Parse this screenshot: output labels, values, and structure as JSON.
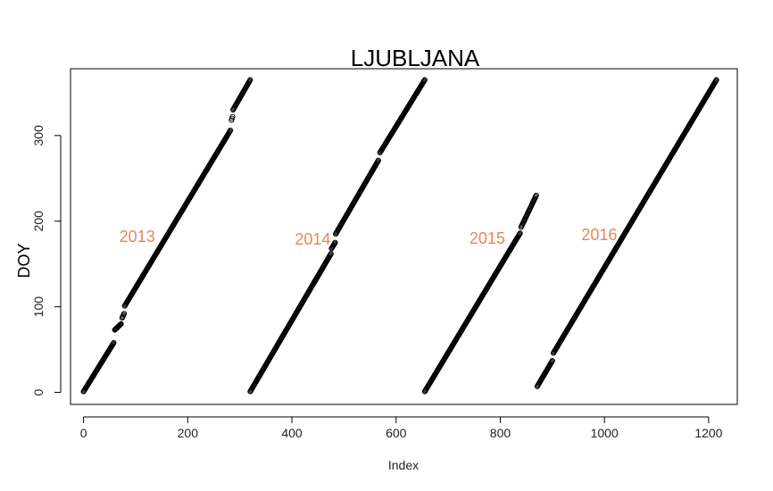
{
  "chart_data": {
    "type": "scatter",
    "title": "LJUBLJANA",
    "xlabel": "Index",
    "ylabel": "DOY",
    "xlim": [
      -25,
      1255
    ],
    "ylim": [
      -14,
      378
    ],
    "x_ticks": [
      0,
      200,
      400,
      600,
      800,
      1000,
      1200
    ],
    "y_ticks": [
      0,
      100,
      200,
      300
    ],
    "grid": false,
    "legend": "none",
    "marker": "open-circle",
    "marker_color": "#000000",
    "annotation_color": "#e8845a",
    "annotations": [
      {
        "text": "2013",
        "x": 103,
        "y": 182
      },
      {
        "text": "2014",
        "x": 440,
        "y": 179
      },
      {
        "text": "2015",
        "x": 775,
        "y": 180
      },
      {
        "text": "2016",
        "x": 990,
        "y": 184
      }
    ],
    "series": [
      {
        "segments": [
          {
            "x0": 0,
            "y0": 1,
            "x1": 58,
            "y1": 58
          },
          {
            "x0": 60,
            "y0": 73,
            "x1": 72,
            "y1": 80
          },
          {
            "x0": 74,
            "y0": 87,
            "x1": 78,
            "y1": 92
          },
          {
            "x0": 79,
            "y0": 101,
            "x1": 282,
            "y1": 306
          },
          {
            "x0": 284,
            "y0": 318,
            "x1": 286,
            "y1": 322
          },
          {
            "x0": 287,
            "y0": 330,
            "x1": 320,
            "y1": 365
          }
        ]
      },
      {
        "segments": [
          {
            "x0": 320,
            "y0": 1,
            "x1": 475,
            "y1": 162
          },
          {
            "x0": 476,
            "y0": 168,
            "x1": 483,
            "y1": 175
          },
          {
            "x0": 484,
            "y0": 185,
            "x1": 566,
            "y1": 271
          },
          {
            "x0": 569,
            "y0": 280,
            "x1": 655,
            "y1": 365
          }
        ]
      },
      {
        "segments": [
          {
            "x0": 655,
            "y0": 1,
            "x1": 838,
            "y1": 186
          },
          {
            "x0": 840,
            "y0": 193,
            "x1": 869,
            "y1": 230
          }
        ]
      },
      {
        "segments": [
          {
            "x0": 871,
            "y0": 7,
            "x1": 900,
            "y1": 37
          },
          {
            "x0": 902,
            "y0": 46,
            "x1": 1215,
            "y1": 365
          }
        ]
      }
    ]
  }
}
